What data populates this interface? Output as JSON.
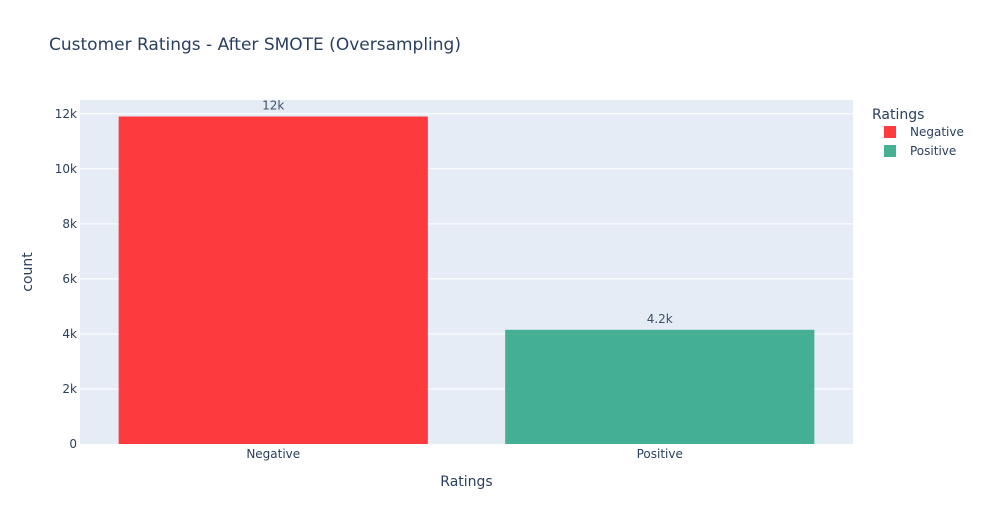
{
  "chart_data": {
    "type": "bar",
    "title": "Customer Ratings - After SMOTE (Oversampling)",
    "xlabel": "Ratings",
    "ylabel": "count",
    "categories": [
      "Negative",
      "Positive"
    ],
    "values": [
      11900,
      4150
    ],
    "bar_labels": [
      "12k",
      "4.2k"
    ],
    "colors": [
      "#ff2a2e",
      "#36a98a"
    ],
    "ylim": [
      0,
      12500
    ],
    "yticks": [
      0,
      2000,
      4000,
      6000,
      8000,
      10000,
      12000
    ],
    "ytick_labels": [
      "0",
      "2k",
      "4k",
      "6k",
      "8k",
      "10k",
      "12k"
    ],
    "grid": true,
    "legend": {
      "title": "Ratings",
      "placement": "top-right",
      "entries": [
        "Negative",
        "Positive"
      ]
    }
  }
}
